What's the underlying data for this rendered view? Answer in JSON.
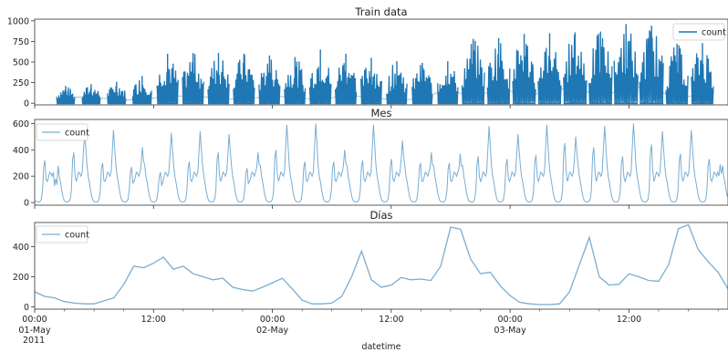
{
  "chart_data": [
    {
      "type": "line",
      "title": "Train data",
      "yticks": [
        "0",
        "250",
        "500",
        "750",
        "1000"
      ],
      "ylim": [
        -20,
        1020
      ],
      "legend": {
        "position": "top-right",
        "label": "count"
      },
      "series": [
        {
          "name": "count",
          "color": "#1f77b4"
        }
      ],
      "daily_bursts_peak_count": [
        210,
        230,
        260,
        330,
        600,
        610,
        610,
        600,
        580,
        560,
        650,
        600,
        550,
        510,
        490,
        510,
        780,
        790,
        840,
        850,
        860,
        870,
        960,
        940,
        720,
        730
      ],
      "daily_mean_line": [
        70,
        80,
        40,
        45,
        85,
        90,
        60,
        45,
        90,
        70,
        40,
        100,
        70,
        35,
        55,
        180,
        60,
        190,
        100,
        130,
        210,
        60,
        200,
        180,
        60,
        110
      ]
    },
    {
      "type": "line",
      "title": "Mes",
      "yticks": [
        "0",
        "200",
        "400",
        "600"
      ],
      "ylim": [
        -20,
        630
      ],
      "legend": {
        "position": "top-left",
        "label": "count"
      },
      "series": [
        {
          "name": "count",
          "color": "#1f77b4",
          "alpha": 0.6
        }
      ],
      "daily_peaks": [
        [
          320,
          180
        ],
        [
          380,
          540
        ],
        [
          300,
          550
        ],
        [
          270,
          420
        ],
        [
          230,
          530
        ],
        [
          310,
          540
        ],
        [
          380,
          520
        ],
        [
          260,
          380
        ],
        [
          400,
          590
        ],
        [
          310,
          600
        ],
        [
          310,
          400
        ],
        [
          320,
          590
        ],
        [
          330,
          470
        ],
        [
          300,
          380
        ],
        [
          300,
          370
        ],
        [
          350,
          580
        ],
        [
          330,
          520
        ],
        [
          360,
          590
        ],
        [
          450,
          500
        ],
        [
          420,
          580
        ],
        [
          350,
          600
        ],
        [
          440,
          540
        ],
        [
          370,
          550
        ],
        [
          330,
          290
        ]
      ]
    },
    {
      "type": "line",
      "title": "Días",
      "yticks": [
        "0",
        "200",
        "400"
      ],
      "ylim": [
        -15,
        560
      ],
      "xlabel": "datetime",
      "xticks": [
        {
          "label": "00:00",
          "sub": "01-May",
          "sub2": "2011"
        },
        {
          "label": "12:00",
          "sub": "",
          "sub2": ""
        },
        {
          "label": "00:00",
          "sub": "02-May",
          "sub2": ""
        },
        {
          "label": "12:00",
          "sub": "",
          "sub2": ""
        },
        {
          "label": "00:00",
          "sub": "03-May",
          "sub2": ""
        },
        {
          "label": "12:00",
          "sub": "",
          "sub2": ""
        }
      ],
      "legend": {
        "position": "top-left",
        "label": "count"
      },
      "series": [
        {
          "name": "count",
          "color": "#1f77b4",
          "alpha": 0.6,
          "x_hours": [
            0,
            1,
            2,
            3,
            4,
            5,
            6,
            7,
            8,
            9,
            10,
            11,
            12,
            13,
            14,
            15,
            16,
            17,
            18,
            19,
            20,
            21,
            22,
            23,
            24,
            25,
            26,
            27,
            28,
            29,
            30,
            31,
            32,
            33,
            34,
            35,
            36,
            37,
            38,
            39,
            40,
            41,
            42,
            43,
            44,
            45,
            46,
            47,
            48,
            49,
            50,
            51,
            52,
            53,
            54,
            55,
            56,
            57,
            58,
            59,
            60,
            61,
            62,
            63,
            64,
            65,
            66,
            67,
            68,
            69,
            70
          ],
          "values": [
            100,
            70,
            60,
            35,
            25,
            20,
            20,
            40,
            60,
            150,
            270,
            260,
            290,
            330,
            250,
            270,
            220,
            200,
            180,
            190,
            130,
            115,
            105,
            130,
            160,
            190,
            120,
            45,
            20,
            20,
            25,
            70,
            200,
            370,
            180,
            130,
            145,
            195,
            180,
            185,
            175,
            270,
            530,
            515,
            320,
            220,
            230,
            140,
            75,
            30,
            20,
            15,
            15,
            20,
            100,
            280,
            460,
            200,
            145,
            150,
            220,
            200,
            175,
            170,
            280,
            520,
            545,
            380,
            300,
            230,
            120
          ]
        }
      ]
    }
  ]
}
